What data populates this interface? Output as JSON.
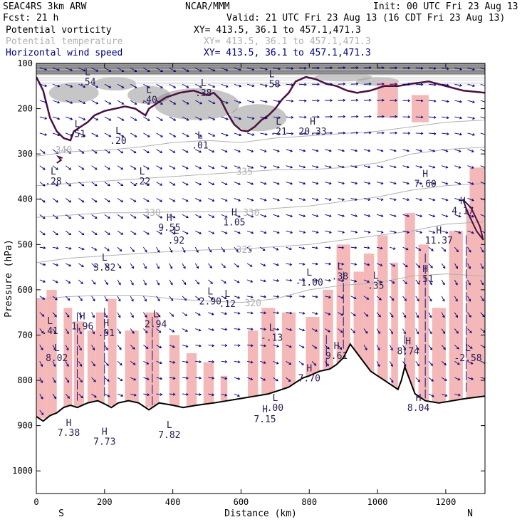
{
  "header": {
    "project": "SEAC4RS   3km ARW",
    "org": "NCAR/MMM",
    "init": "Init: 00 UTC Fri 23 Aug 13",
    "fcst": "Fcst:   21 h",
    "valid": "Valid: 21 UTC Fri 23 Aug 13 (16 CDT Fri 23 Aug 13)"
  },
  "fields": [
    {
      "name": "Potential vorticity",
      "xy": "XY= 413.5, 36.1 to 457.1,471.3",
      "color": "#000000"
    },
    {
      "name": "Potential temperature",
      "xy": "XY= 413.5, 36.1 to 457.1,471.3",
      "color": "#aaaaaa"
    },
    {
      "name": "Horizontal wind speed",
      "xy": "XY= 413.5, 36.1 to 457.1,471.3",
      "color": "#000080"
    }
  ],
  "chart_data": {
    "type": "cross-section",
    "xlabel": "Distance (km)",
    "ylabel": "Pressure (hPa)",
    "x_ticks": [
      0,
      200,
      400,
      600,
      800,
      1000,
      1200
    ],
    "y_ticks": [
      100,
      200,
      300,
      400,
      500,
      600,
      700,
      800,
      900,
      1000
    ],
    "xlim": [
      0,
      1315
    ],
    "ylim": [
      100,
      1050
    ],
    "y_inverted": true,
    "end_labels": {
      "left": "S",
      "right": "N"
    },
    "isentrope_labels": [
      {
        "value": "340",
        "x": 80,
        "p": 292
      },
      {
        "value": "335",
        "x": 610,
        "p": 340
      },
      {
        "value": "330",
        "x": 340,
        "p": 430
      },
      {
        "value": "330",
        "x": 630,
        "p": 430
      },
      {
        "value": "325",
        "x": 610,
        "p": 512
      },
      {
        "value": "320",
        "x": 635,
        "p": 630
      }
    ],
    "isentropes": [
      {
        "value": 340,
        "points": [
          [
            0,
            305
          ],
          [
            100,
            295
          ],
          [
            200,
            292
          ],
          [
            300,
            285
          ],
          [
            400,
            275
          ],
          [
            500,
            270
          ],
          [
            600,
            275
          ],
          [
            700,
            265
          ],
          [
            800,
            260
          ],
          [
            900,
            255
          ],
          [
            1000,
            250
          ],
          [
            1100,
            240
          ],
          [
            1200,
            230
          ],
          [
            1315,
            225
          ]
        ]
      },
      {
        "value": 335,
        "points": [
          [
            0,
            370
          ],
          [
            100,
            365
          ],
          [
            200,
            360
          ],
          [
            300,
            355
          ],
          [
            400,
            350
          ],
          [
            500,
            345
          ],
          [
            600,
            340
          ],
          [
            700,
            335
          ],
          [
            800,
            335
          ],
          [
            900,
            330
          ],
          [
            1000,
            320
          ],
          [
            1100,
            300
          ],
          [
            1200,
            290
          ],
          [
            1315,
            285
          ]
        ]
      },
      {
        "value": 330,
        "points": [
          [
            0,
            440
          ],
          [
            100,
            435
          ],
          [
            200,
            430
          ],
          [
            300,
            430
          ],
          [
            400,
            428
          ],
          [
            500,
            428
          ],
          [
            600,
            428
          ],
          [
            700,
            420
          ],
          [
            800,
            415
          ],
          [
            900,
            405
          ],
          [
            1000,
            395
          ],
          [
            1100,
            380
          ],
          [
            1200,
            370
          ],
          [
            1315,
            365
          ]
        ]
      },
      {
        "value": 325,
        "points": [
          [
            0,
            540
          ],
          [
            100,
            530
          ],
          [
            200,
            525
          ],
          [
            300,
            520
          ],
          [
            400,
            515
          ],
          [
            500,
            512
          ],
          [
            600,
            510
          ],
          [
            700,
            505
          ],
          [
            800,
            500
          ],
          [
            900,
            490
          ],
          [
            1000,
            480
          ],
          [
            1100,
            470
          ],
          [
            1200,
            455
          ],
          [
            1315,
            450
          ]
        ]
      },
      {
        "value": 320,
        "points": [
          [
            0,
            620
          ],
          [
            100,
            615
          ],
          [
            200,
            612
          ],
          [
            300,
            612
          ],
          [
            400,
            620
          ],
          [
            500,
            625
          ],
          [
            600,
            628
          ],
          [
            700,
            620
          ],
          [
            800,
            600
          ],
          [
            900,
            590
          ],
          [
            1000,
            585
          ],
          [
            1100,
            570
          ],
          [
            1200,
            565
          ],
          [
            1315,
            570
          ]
        ]
      }
    ],
    "terrain": [
      [
        0,
        880
      ],
      [
        20,
        890
      ],
      [
        40,
        878
      ],
      [
        60,
        872
      ],
      [
        80,
        860
      ],
      [
        100,
        855
      ],
      [
        120,
        860
      ],
      [
        150,
        850
      ],
      [
        180,
        845
      ],
      [
        200,
        852
      ],
      [
        220,
        860
      ],
      [
        240,
        850
      ],
      [
        270,
        845
      ],
      [
        300,
        850
      ],
      [
        330,
        865
      ],
      [
        360,
        850
      ],
      [
        400,
        855
      ],
      [
        430,
        860
      ],
      [
        470,
        855
      ],
      [
        520,
        850
      ],
      [
        560,
        845
      ],
      [
        600,
        840
      ],
      [
        640,
        835
      ],
      [
        680,
        830
      ],
      [
        700,
        825
      ],
      [
        720,
        820
      ],
      [
        740,
        815
      ],
      [
        760,
        805
      ],
      [
        780,
        795
      ],
      [
        800,
        790
      ],
      [
        830,
        780
      ],
      [
        860,
        775
      ],
      [
        880,
        765
      ],
      [
        900,
        750
      ],
      [
        920,
        720
      ],
      [
        940,
        740
      ],
      [
        960,
        760
      ],
      [
        980,
        780
      ],
      [
        1000,
        790
      ],
      [
        1020,
        800
      ],
      [
        1040,
        810
      ],
      [
        1060,
        820
      ],
      [
        1070,
        800
      ],
      [
        1080,
        770
      ],
      [
        1090,
        790
      ],
      [
        1110,
        830
      ],
      [
        1140,
        845
      ],
      [
        1180,
        850
      ],
      [
        1220,
        845
      ],
      [
        1260,
        840
      ],
      [
        1315,
        835
      ]
    ],
    "hl_labels": [
      {
        "hl": "L",
        "value": ".54",
        "x": 150,
        "p": 135
      },
      {
        "hl": "L",
        "value": ".40",
        "x": 330,
        "p": 175
      },
      {
        "hl": "L",
        "value": ".51",
        "x": 120,
        "p": 250
      },
      {
        "hl": "L",
        "value": ".20",
        "x": 240,
        "p": 265
      },
      {
        "hl": "L",
        "value": ".38",
        "x": 490,
        "p": 160
      },
      {
        "hl": "L",
        "value": ".01",
        "x": 480,
        "p": 275
      },
      {
        "hl": "L",
        "value": ".58",
        "x": 690,
        "p": 140
      },
      {
        "hl": "L",
        "value": ".21",
        "x": 710,
        "p": 245
      },
      {
        "hl": "H",
        "value": "20.33",
        "x": 810,
        "p": 245
      },
      {
        "hl": "L",
        "value": ".28",
        "x": 50,
        "p": 355
      },
      {
        "hl": "L",
        "value": ".22",
        "x": 310,
        "p": 355
      },
      {
        "hl": "H",
        "value": "9.55",
        "x": 390,
        "p": 457
      },
      {
        "hl": "H",
        "value": "1.05",
        "x": 580,
        "p": 445
      },
      {
        "hl": "L",
        "value": ".92",
        "x": 410,
        "p": 485
      },
      {
        "hl": "L",
        "value": "3.82",
        "x": 200,
        "p": 545
      },
      {
        "hl": "L",
        "value": "-1.00",
        "x": 800,
        "p": 578
      },
      {
        "hl": "L",
        "value": ".38",
        "x": 890,
        "p": 565
      },
      {
        "hl": "L",
        "value": ".35",
        "x": 995,
        "p": 585
      },
      {
        "hl": "H",
        "value": ".51",
        "x": 1140,
        "p": 570
      },
      {
        "hl": "L",
        "value": "2.90",
        "x": 510,
        "p": 620
      },
      {
        "hl": "L",
        "value": ".12",
        "x": 560,
        "p": 625
      },
      {
        "hl": "H",
        "value": "7.60",
        "x": 1140,
        "p": 360
      },
      {
        "hl": "H",
        "value": "4.17",
        "x": 1250,
        "p": 420
      },
      {
        "hl": "H",
        "value": "11.37",
        "x": 1180,
        "p": 485
      },
      {
        "hl": "L",
        "value": ".41",
        "x": 40,
        "p": 685
      },
      {
        "hl": "H",
        "value": "1.96",
        "x": 135,
        "p": 675
      },
      {
        "hl": "H",
        "value": ".91",
        "x": 205,
        "p": 690
      },
      {
        "hl": "L",
        "value": "2.94",
        "x": 350,
        "p": 670
      },
      {
        "hl": "L",
        "value": "-.13",
        "x": 690,
        "p": 700
      },
      {
        "hl": "H",
        "value": "9.61",
        "x": 880,
        "p": 740
      },
      {
        "hl": "H",
        "value": "8.74",
        "x": 1090,
        "p": 730
      },
      {
        "hl": "L",
        "value": "-2.58",
        "x": 1265,
        "p": 745
      },
      {
        "hl": "L",
        "value": "8.02",
        "x": 60,
        "p": 745
      },
      {
        "hl": "H",
        "value": "7.70",
        "x": 800,
        "p": 790
      },
      {
        "hl": "L",
        "value": ".00",
        "x": 700,
        "p": 855
      },
      {
        "hl": "H",
        "value": "8.04",
        "x": 1120,
        "p": 855
      },
      {
        "hl": "H",
        "value": "7.38",
        "x": 95,
        "p": 910
      },
      {
        "hl": "H",
        "value": "7.73",
        "x": 200,
        "p": 930
      },
      {
        "hl": "L",
        "value": "7.82",
        "x": 390,
        "p": 915
      },
      {
        "hl": "H",
        "value": "7.15",
        "x": 670,
        "p": 880
      }
    ],
    "colors": {
      "pv_shading": "#808080",
      "pv_contour": "#4b1040",
      "isentrope": "#b0b0b0",
      "wind": "#000080",
      "pink": "#f4b8b8",
      "terrain": "#000000"
    }
  }
}
